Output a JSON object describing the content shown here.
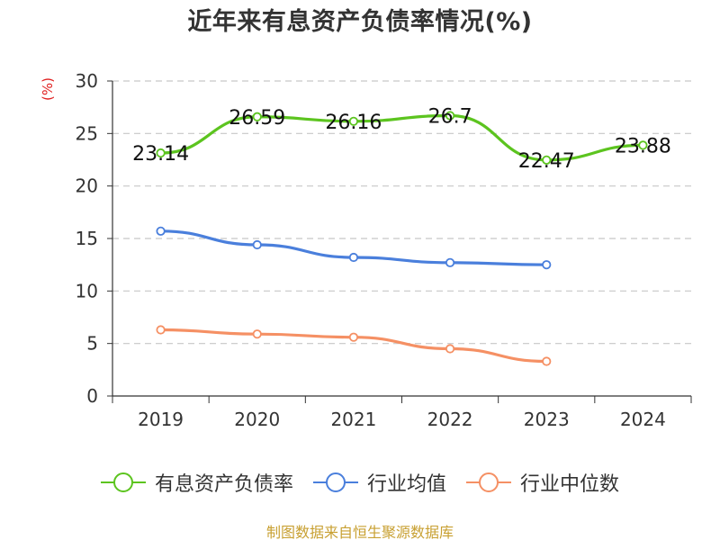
{
  "title": "近年来有息资产负债率情况(%)",
  "y_unit_label": "(%)",
  "source": "制图数据来自恒生聚源数据库",
  "colors": {
    "series_0": "#5cc41f",
    "series_1": "#4a7fdc",
    "series_2": "#f59064",
    "grid": "#c8c8c8",
    "axis": "#333333",
    "unit_label": "#e02020",
    "source_text": "#c8a032"
  },
  "chart_data": {
    "type": "line",
    "title": "近年来有息资产负债率情况(%)",
    "xlabel": "",
    "ylabel": "(%)",
    "categories": [
      "2019",
      "2020",
      "2021",
      "2022",
      "2023",
      "2024"
    ],
    "ylim": [
      0,
      30
    ],
    "yticks": [
      0,
      5,
      10,
      15,
      20,
      25,
      30
    ],
    "grid": true,
    "legend_position": "bottom",
    "series": [
      {
        "name": "有息资产负债率",
        "values": [
          23.14,
          26.59,
          26.16,
          26.7,
          22.47,
          23.88
        ],
        "data_labels": [
          "23.14",
          "26.59",
          "26.16",
          "26.7",
          "22.47",
          "23.88"
        ]
      },
      {
        "name": "行业均值",
        "values": [
          15.7,
          14.4,
          13.2,
          12.7,
          12.5,
          null
        ]
      },
      {
        "name": "行业中位数",
        "values": [
          6.3,
          5.9,
          5.6,
          4.5,
          3.3,
          null
        ]
      }
    ]
  }
}
